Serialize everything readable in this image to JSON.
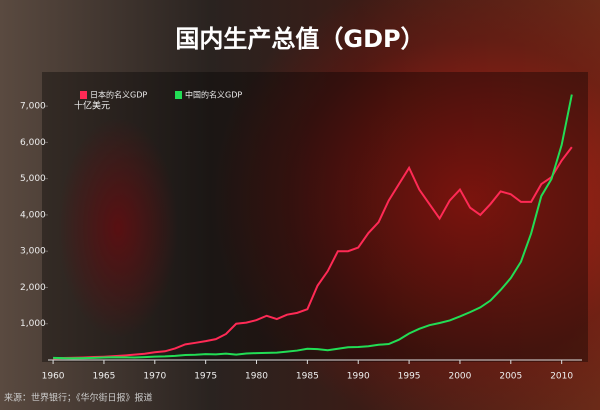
{
  "chart_data": {
    "type": "line",
    "title": "国内生产总值（GDP）",
    "y_axis_label": "十亿美元",
    "source": "来源：世界银行；《华尔街日报》报道",
    "legend": "top-left",
    "x": [
      1960,
      1961,
      1962,
      1963,
      1964,
      1965,
      1966,
      1967,
      1968,
      1969,
      1970,
      1971,
      1972,
      1973,
      1974,
      1975,
      1976,
      1977,
      1978,
      1979,
      1980,
      1981,
      1982,
      1983,
      1984,
      1985,
      1986,
      1987,
      1988,
      1989,
      1990,
      1991,
      1992,
      1993,
      1994,
      1995,
      1996,
      1997,
      1998,
      1999,
      2000,
      2001,
      2002,
      2003,
      2004,
      2005,
      2006,
      2007,
      2008,
      2009,
      2010,
      2011
    ],
    "series": [
      {
        "name": "日本的名义GDP",
        "color": "#ff2a55",
        "values": [
          44,
          54,
          61,
          70,
          82,
          91,
          106,
          124,
          147,
          172,
          213,
          240,
          318,
          432,
          474,
          520,
          576,
          718,
          1000,
          1030,
          1100,
          1220,
          1130,
          1250,
          1300,
          1400,
          2050,
          2450,
          3000,
          3000,
          3100,
          3500,
          3800,
          4400,
          4850,
          5300,
          4700,
          4300,
          3900,
          4400,
          4700,
          4200,
          4000,
          4300,
          4650,
          4570,
          4360,
          4360,
          4850,
          5040,
          5500,
          5870
        ]
      },
      {
        "name": "中国的名义GDP",
        "color": "#22dd55",
        "values": [
          60,
          50,
          47,
          51,
          60,
          70,
          76,
          72,
          70,
          79,
          93,
          100,
          114,
          138,
          144,
          163,
          154,
          175,
          150,
          180,
          190,
          195,
          205,
          230,
          260,
          310,
          300,
          270,
          310,
          350,
          360,
          380,
          420,
          440,
          560,
          730,
          860,
          960,
          1020,
          1090,
          1200,
          1320,
          1450,
          1640,
          1930,
          2260,
          2710,
          3490,
          4520,
          4990,
          5930,
          7320
        ]
      }
    ],
    "xlim": [
      1959.5,
      2012
    ],
    "xticks": [
      1960,
      1965,
      1970,
      1975,
      1980,
      1985,
      1990,
      1995,
      2000,
      2005,
      2010
    ],
    "ylim": [
      0,
      7500
    ],
    "yticks": [
      {
        "value": 1000,
        "label": "1,000"
      },
      {
        "value": 2000,
        "label": "2,000"
      },
      {
        "value": 3000,
        "label": "3,000"
      },
      {
        "value": 4000,
        "label": "4,000"
      },
      {
        "value": 5000,
        "label": "5,000"
      },
      {
        "value": 6000,
        "label": "6,000"
      },
      {
        "value": 7000,
        "label": "7,000"
      }
    ]
  }
}
